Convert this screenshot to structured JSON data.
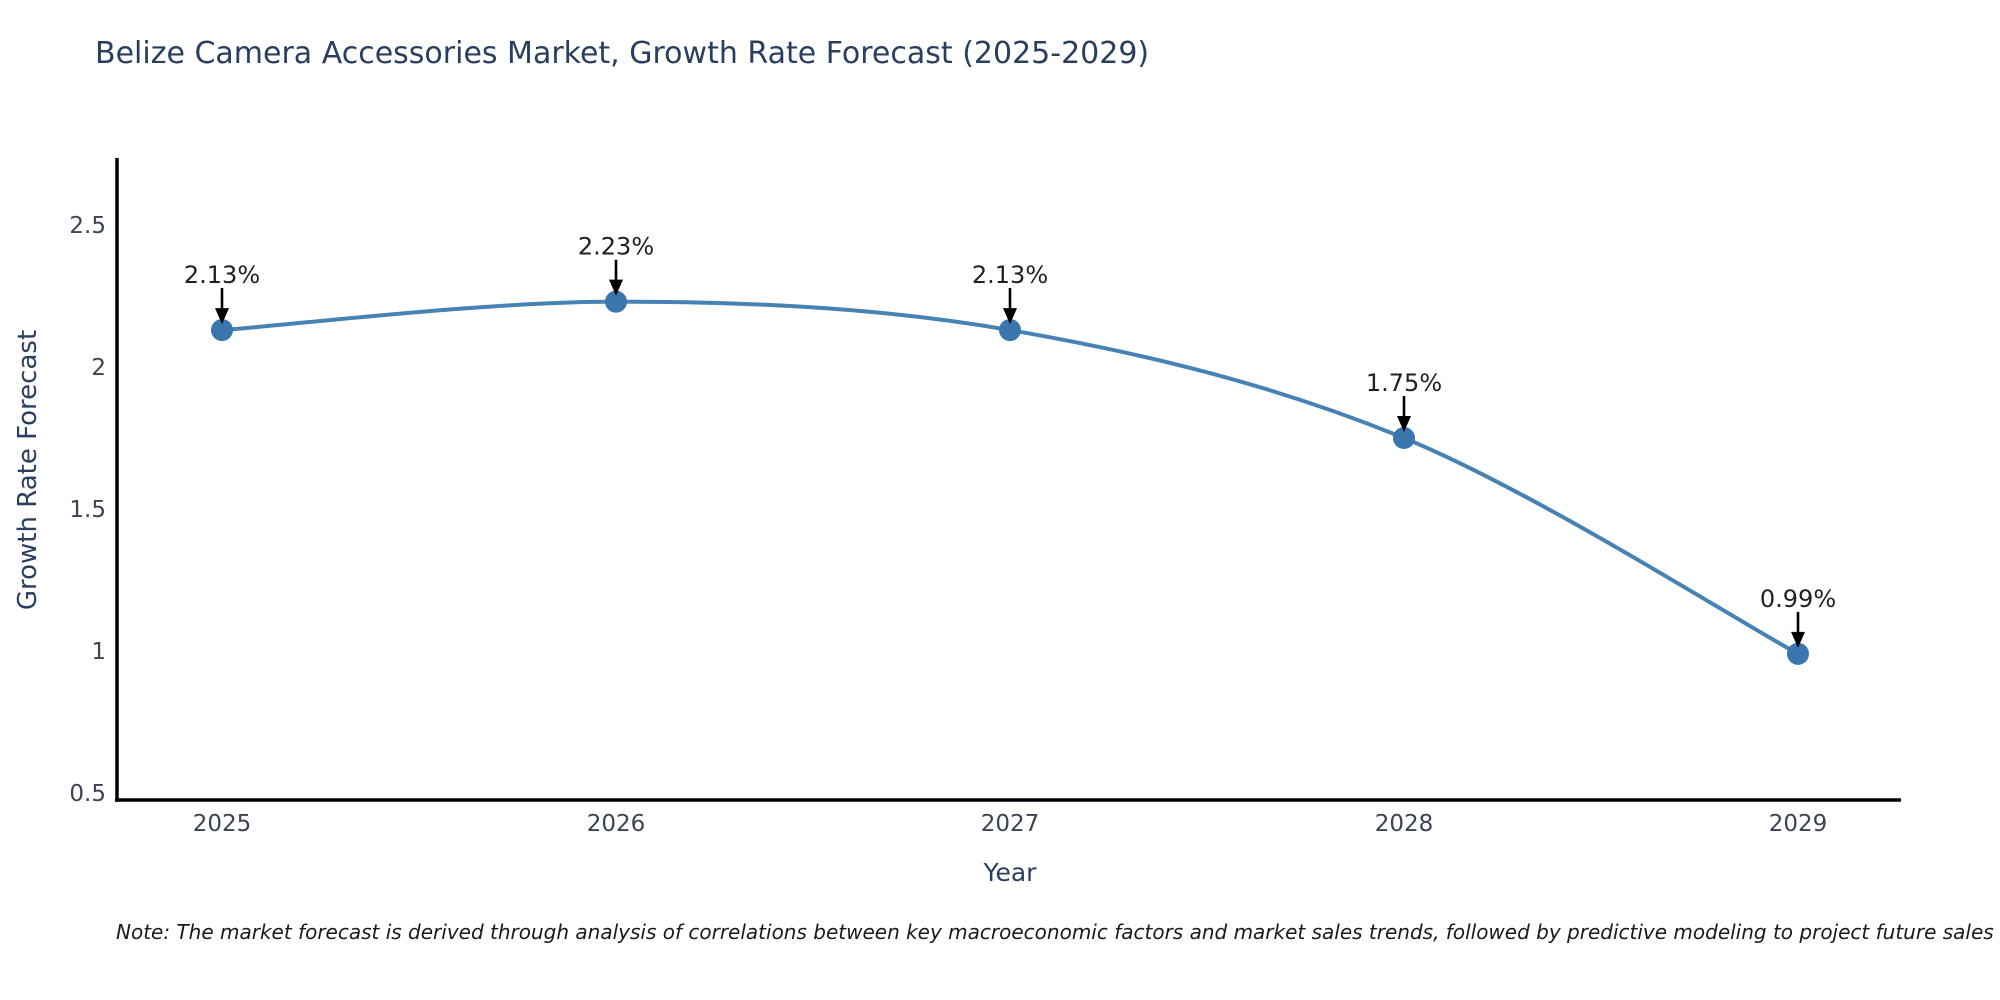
{
  "note": {
    "text": "Note: The market forecast is derived through analysis of correlations between key macroeconomic factors and market sales trends, followed by predictive modeling to project future sales"
  },
  "colors": {
    "background": "#ffffff",
    "line": "#4682b4",
    "marker": "#3a76ad",
    "spine": "#000000",
    "arrow": "#000000",
    "title": "#2a3f5f",
    "axis_title": "#2a3f5f",
    "tick_label": "#3b4452",
    "annotation_text": "#1e2023",
    "note_text": "#1a1a1a"
  },
  "chart_data": {
    "type": "line",
    "title": "Belize Camera Accessories Market, Growth Rate Forecast (2025-2029)",
    "xlabel": "Year",
    "ylabel": "Growth Rate Forecast",
    "categories": [
      "2025",
      "2026",
      "2027",
      "2028",
      "2029"
    ],
    "series": [
      {
        "name": "Growth Rate Forecast",
        "values": [
          2.13,
          2.23,
          2.13,
          1.75,
          0.99
        ]
      }
    ],
    "annotations": [
      "2.13%",
      "2.23%",
      "2.13%",
      "1.75%",
      "0.99%"
    ],
    "annotation_style": "black-down-arrow-to-point",
    "yticks": [
      0.5,
      1.0,
      1.5,
      2.0,
      2.5
    ],
    "ytick_labels": [
      "0.5",
      "1",
      "1.5",
      "2",
      "2.5"
    ],
    "ylim": [
      0.5,
      2.73
    ],
    "line_shape": "spline",
    "marker_style": "circle",
    "grid": false,
    "legend_position": "none",
    "spines": [
      "left",
      "bottom"
    ]
  }
}
